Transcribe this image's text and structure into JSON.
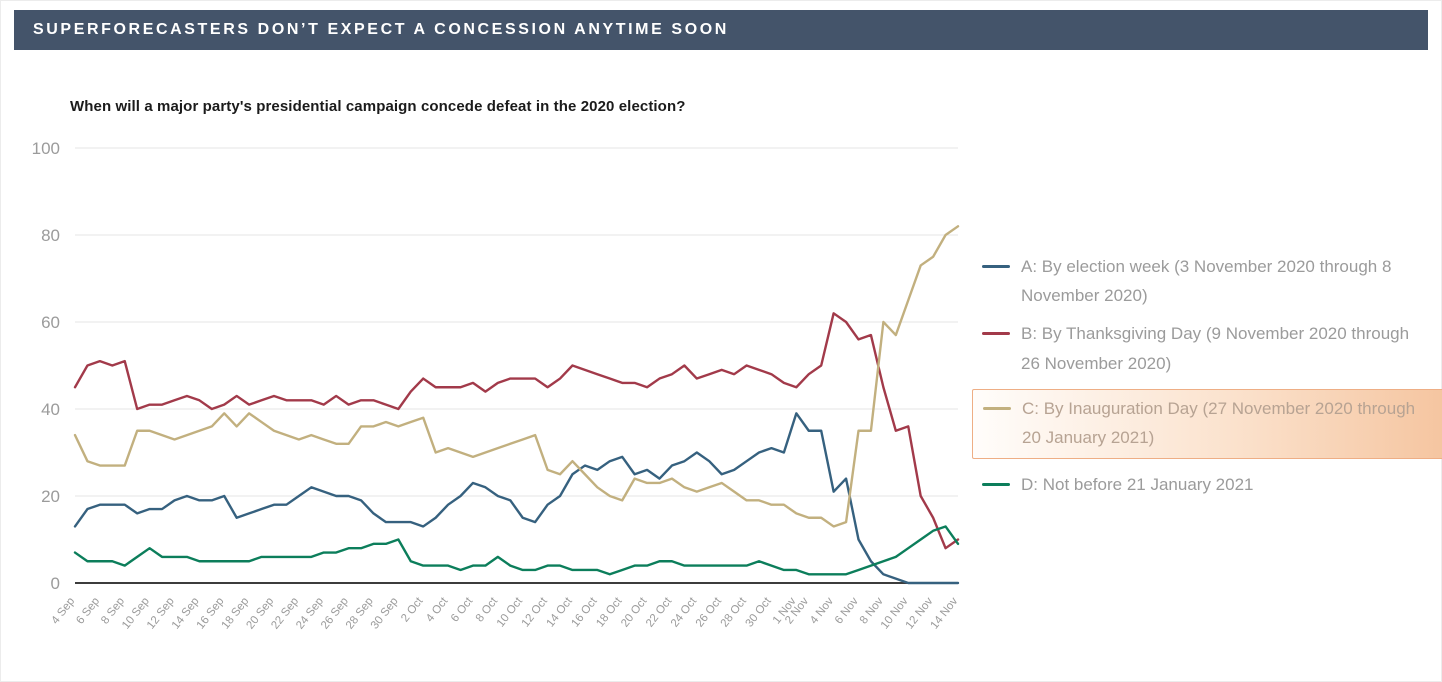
{
  "header": {
    "title": "SUPERFORECASTERS DON’T EXPECT A CONCESSION ANYTIME SOON",
    "bg_color": "#44546a",
    "text_color": "#ffffff"
  },
  "chart_data": {
    "type": "line",
    "title": "When will a major party's presidential campaign concede defeat in the 2020 election?",
    "xlabel": "",
    "ylabel": "",
    "ylim": [
      0,
      100
    ],
    "yticks": [
      0,
      20,
      40,
      60,
      80,
      100
    ],
    "grid": true,
    "legend_position": "right",
    "axis_color": "#3c3c3c",
    "grid_color": "#e4e4e4",
    "tick_label_color": "#9b9b9b",
    "dates": [
      "4 Sep",
      "5 Sep",
      "6 Sep",
      "7 Sep",
      "8 Sep",
      "9 Sep",
      "10 Sep",
      "11 Sep",
      "12 Sep",
      "13 Sep",
      "14 Sep",
      "15 Sep",
      "16 Sep",
      "17 Sep",
      "18 Sep",
      "19 Sep",
      "20 Sep",
      "21 Sep",
      "22 Sep",
      "23 Sep",
      "24 Sep",
      "25 Sep",
      "26 Sep",
      "27 Sep",
      "28 Sep",
      "29 Sep",
      "30 Sep",
      "1 Oct",
      "2 Oct",
      "3 Oct",
      "4 Oct",
      "5 Oct",
      "6 Oct",
      "7 Oct",
      "8 Oct",
      "9 Oct",
      "10 Oct",
      "11 Oct",
      "12 Oct",
      "13 Oct",
      "14 Oct",
      "15 Oct",
      "16 Oct",
      "17 Oct",
      "18 Oct",
      "19 Oct",
      "20 Oct",
      "21 Oct",
      "22 Oct",
      "23 Oct",
      "24 Oct",
      "25 Oct",
      "26 Oct",
      "27 Oct",
      "28 Oct",
      "29 Oct",
      "30 Oct",
      "31 Oct",
      "1 Nov",
      "2 Nov",
      "3 Nov",
      "4 Nov",
      "5 Nov",
      "6 Nov",
      "7 Nov",
      "8 Nov",
      "9 Nov",
      "10 Nov",
      "11 Nov",
      "12 Nov",
      "13 Nov",
      "14 Nov"
    ],
    "x_tick_labels": [
      "4 Sep",
      "6 Sep",
      "8 Sep",
      "10 Sep",
      "12 Sep",
      "14 Sep",
      "16 Sep",
      "18 Sep",
      "20 Sep",
      "22 Sep",
      "24 Sep",
      "26 Sep",
      "28 Sep",
      "30 Sep",
      "2 Oct",
      "4 Oct",
      "6 Oct",
      "8 Oct",
      "10 Oct",
      "12 Oct",
      "14 Oct",
      "16 Oct",
      "18 Oct",
      "20 Oct",
      "22 Oct",
      "24 Oct",
      "26 Oct",
      "28 Oct",
      "30 Oct",
      "1 Nov",
      "2 Nov",
      "4 Nov",
      "6 Nov",
      "8 Nov",
      "10 Nov",
      "12 Nov",
      "14 Nov"
    ],
    "series": [
      {
        "id": "a",
        "name": "A: By election week (3 November 2020 through 8 November 2020)",
        "color": "#36617f",
        "highlighted": false,
        "values": [
          13,
          17,
          18,
          18,
          18,
          16,
          17,
          17,
          19,
          20,
          19,
          19,
          20,
          15,
          16,
          17,
          18,
          18,
          20,
          22,
          21,
          20,
          20,
          19,
          16,
          14,
          14,
          14,
          13,
          15,
          18,
          20,
          23,
          22,
          20,
          19,
          15,
          14,
          18,
          20,
          25,
          27,
          26,
          28,
          29,
          25,
          26,
          24,
          27,
          28,
          30,
          28,
          25,
          26,
          28,
          30,
          31,
          30,
          39,
          35,
          35,
          21,
          24,
          10,
          5,
          2,
          1,
          0,
          0,
          0,
          0,
          0
        ]
      },
      {
        "id": "b",
        "name": "B: By Thanksgiving Day (9 November 2020 through 26 November 2020)",
        "color": "#a23a4a",
        "highlighted": false,
        "values": [
          45,
          50,
          51,
          50,
          51,
          40,
          41,
          41,
          42,
          43,
          42,
          40,
          41,
          43,
          41,
          42,
          43,
          42,
          42,
          42,
          41,
          43,
          41,
          42,
          42,
          41,
          40,
          44,
          47,
          45,
          45,
          45,
          46,
          44,
          46,
          47,
          47,
          47,
          45,
          47,
          50,
          49,
          48,
          47,
          46,
          46,
          45,
          47,
          48,
          50,
          47,
          48,
          49,
          48,
          50,
          49,
          48,
          46,
          45,
          48,
          50,
          62,
          60,
          56,
          57,
          45,
          35,
          36,
          20,
          15,
          8,
          10
        ]
      },
      {
        "id": "c",
        "name": "C: By Inauguration Day (27 November 2020 through 20 January 2021)",
        "color": "#c2b07f",
        "highlighted": true,
        "values": [
          34,
          28,
          27,
          27,
          27,
          35,
          35,
          34,
          33,
          34,
          35,
          36,
          39,
          36,
          39,
          37,
          35,
          34,
          33,
          34,
          33,
          32,
          32,
          36,
          36,
          37,
          36,
          37,
          38,
          30,
          31,
          30,
          29,
          30,
          31,
          32,
          33,
          34,
          26,
          25,
          28,
          25,
          22,
          20,
          19,
          24,
          23,
          23,
          24,
          22,
          21,
          22,
          23,
          21,
          19,
          19,
          18,
          18,
          16,
          15,
          15,
          13,
          14,
          35,
          35,
          60,
          57,
          65,
          73,
          75,
          80,
          82
        ]
      },
      {
        "id": "d",
        "name": "D: Not before 21 January 2021",
        "color": "#0c7e5b",
        "highlighted": false,
        "values": [
          7,
          5,
          5,
          5,
          4,
          6,
          8,
          6,
          6,
          6,
          5,
          5,
          5,
          5,
          5,
          6,
          6,
          6,
          6,
          6,
          7,
          7,
          8,
          8,
          9,
          9,
          10,
          5,
          4,
          4,
          4,
          3,
          4,
          4,
          6,
          4,
          3,
          3,
          4,
          4,
          3,
          3,
          3,
          2,
          3,
          4,
          4,
          5,
          5,
          4,
          4,
          4,
          4,
          4,
          4,
          5,
          4,
          3,
          3,
          2,
          2,
          2,
          2,
          3,
          4,
          5,
          6,
          8,
          10,
          12,
          13,
          9
        ]
      }
    ],
    "highlight_box": {
      "bg_from": "#fffdfb",
      "bg_to": "#f5c5a0",
      "border": "#eeae85"
    }
  }
}
